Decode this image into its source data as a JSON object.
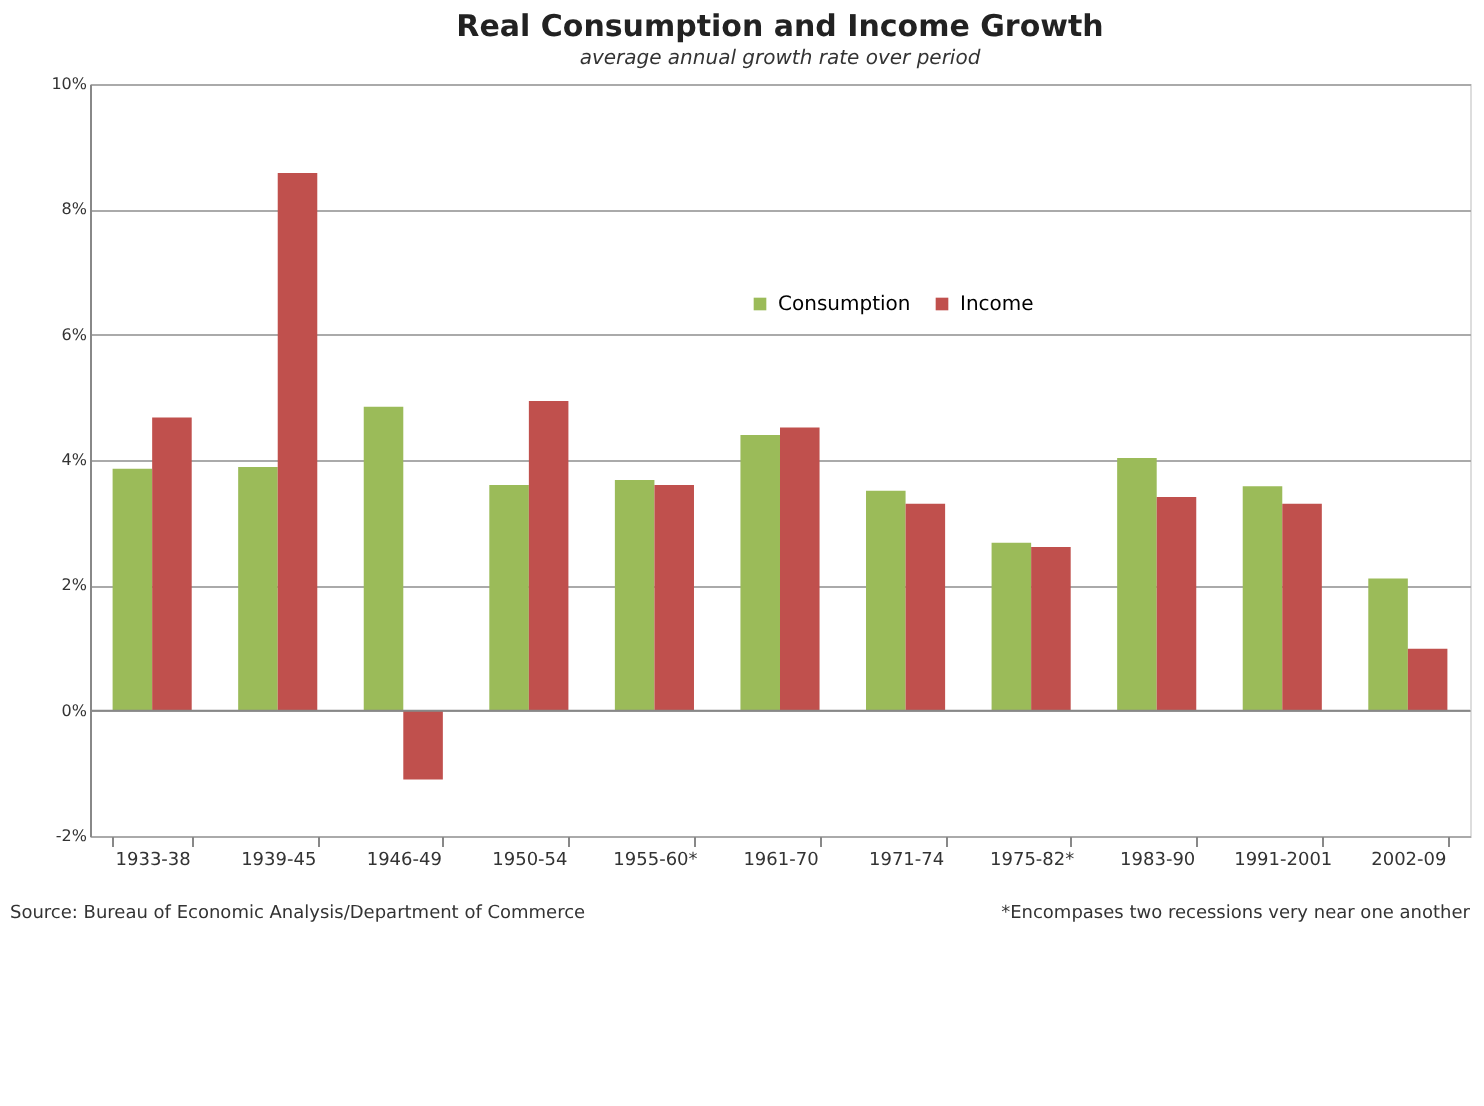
{
  "chart_data": {
    "type": "bar",
    "title": "Real Consumption and Income Growth",
    "subtitle": "average annual growth rate over period",
    "categories": [
      "1933-38",
      "1939-45",
      "1946-49",
      "1950-54",
      "1955-60*",
      "1961-70",
      "1971-74",
      "1975-82*",
      "1983-90",
      "1991-2001",
      "2002-09"
    ],
    "series": [
      {
        "name": "Consumption",
        "color": "#9bbb59",
        "values": [
          3.86,
          3.89,
          4.85,
          3.6,
          3.68,
          4.4,
          3.51,
          2.68,
          4.03,
          3.58,
          2.11
        ]
      },
      {
        "name": "Income",
        "color": "#c0504d",
        "values": [
          4.68,
          8.58,
          -1.1,
          4.94,
          3.6,
          4.52,
          3.3,
          2.61,
          3.41,
          3.3,
          0.99
        ]
      }
    ],
    "ylim": [
      -2,
      10
    ],
    "yticks": [
      {
        "value": -2,
        "label": "-2%"
      },
      {
        "value": 0,
        "label": "0%"
      },
      {
        "value": 2,
        "label": "2%"
      },
      {
        "value": 4,
        "label": "4%"
      },
      {
        "value": 6,
        "label": "6%"
      },
      {
        "value": 8,
        "label": "8%"
      },
      {
        "value": 10,
        "label": "10%"
      }
    ],
    "grid": "y",
    "legend": "top right",
    "annotations": [
      "Source:  Bureau of Economic Analysis/Department of Commerce",
      "*Encompases two recessions very near one another"
    ]
  }
}
